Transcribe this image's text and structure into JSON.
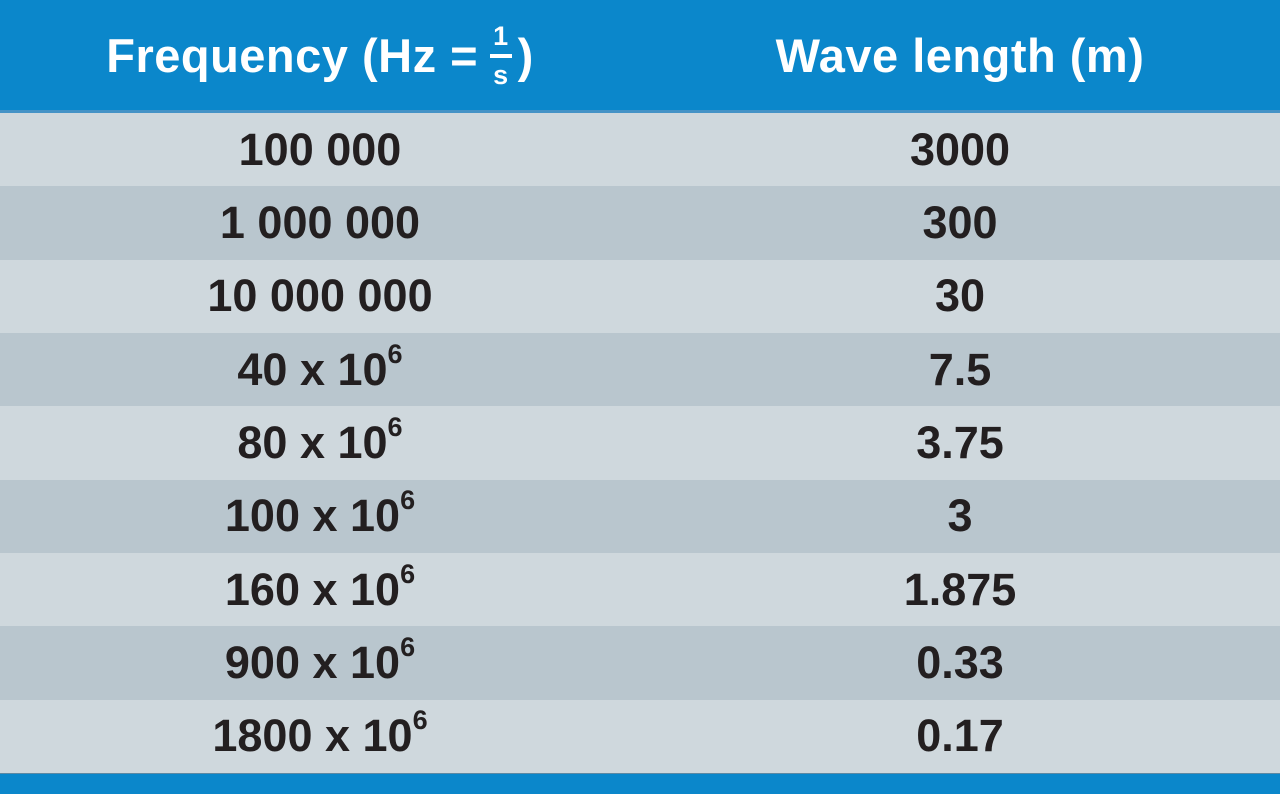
{
  "colors": {
    "header_blue": "#0b87cb",
    "footer_blue": "#0b87cb",
    "row_light": "#cfd8dd",
    "row_dark": "#b9c6ce",
    "text_dark": "#231f20",
    "header_text": "#ffffff"
  },
  "table": {
    "header": {
      "frequency_prefix": "Frequency (Hz =",
      "fraction_numerator": "1",
      "fraction_denominator": "s",
      "frequency_suffix": ")",
      "wavelength": "Wave length (m)"
    },
    "rows": [
      {
        "freq_base": "100 000",
        "freq_exp": "",
        "wavelength": "3000"
      },
      {
        "freq_base": "1 000 000",
        "freq_exp": "",
        "wavelength": "300"
      },
      {
        "freq_base": "10 000 000",
        "freq_exp": "",
        "wavelength": "30"
      },
      {
        "freq_base": "40 x 10",
        "freq_exp": "6",
        "wavelength": "7.5"
      },
      {
        "freq_base": "80 x 10",
        "freq_exp": "6",
        "wavelength": "3.75"
      },
      {
        "freq_base": "100 x 10",
        "freq_exp": "6",
        "wavelength": "3"
      },
      {
        "freq_base": "160 x 10",
        "freq_exp": "6",
        "wavelength": "1.875"
      },
      {
        "freq_base": "900 x 10",
        "freq_exp": "6",
        "wavelength": "0.33"
      },
      {
        "freq_base": "1800 x 10",
        "freq_exp": "6",
        "wavelength": "0.17"
      }
    ]
  },
  "chart_data": {
    "type": "table",
    "title": "",
    "columns": [
      "Frequency (Hz = 1/s)",
      "Wave length (m)"
    ],
    "rows": [
      [
        "100 000",
        "3000"
      ],
      [
        "1 000 000",
        "300"
      ],
      [
        "10 000 000",
        "30"
      ],
      [
        "40 x 10^6",
        "7.5"
      ],
      [
        "80 x 10^6",
        "3.75"
      ],
      [
        "100 x 10^6",
        "3"
      ],
      [
        "160 x 10^6",
        "1.875"
      ],
      [
        "900 x 10^6",
        "0.33"
      ],
      [
        "1800 x 10^6",
        "0.17"
      ]
    ]
  }
}
